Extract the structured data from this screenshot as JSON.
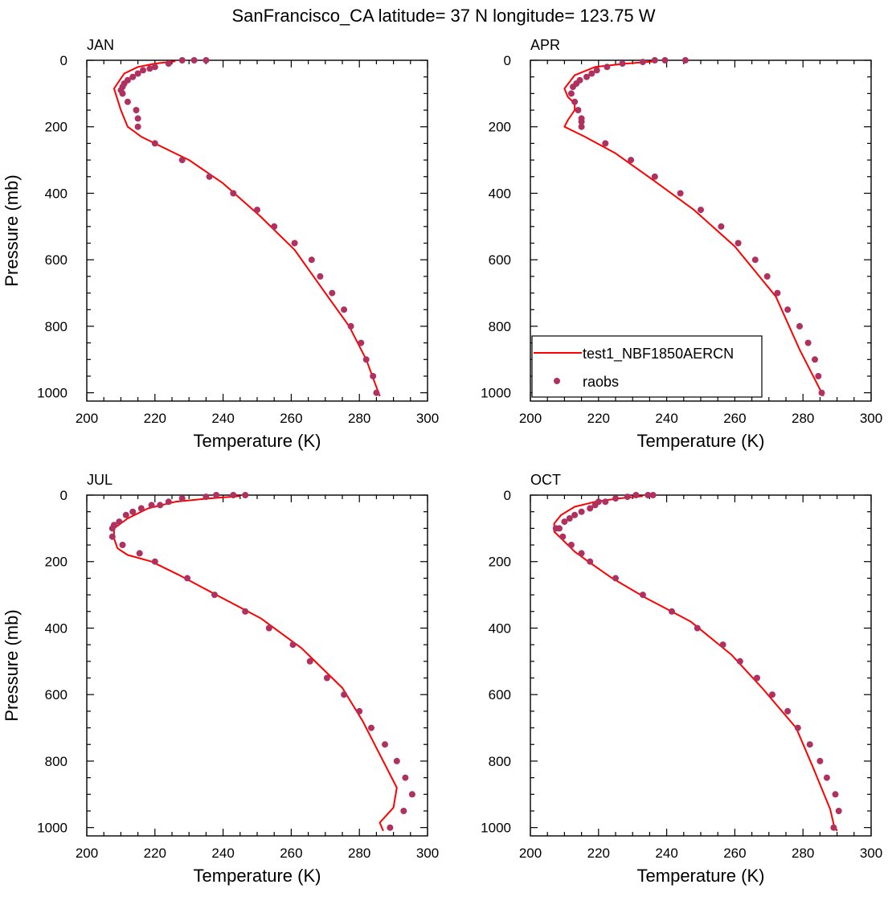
{
  "figure": {
    "title": "SanFrancisco_CA  latitude= 37 N longitude= 123.75 W"
  },
  "legend": {
    "model_label": "test1_NBF1850AERCN",
    "obs_label": "raobs",
    "placement": "bottom-left of APR panel"
  },
  "colors": {
    "model_line": "#ff0000",
    "obs_marker": "#b03060",
    "axes": "#000000",
    "background": "#ffffff"
  },
  "chart_data": [
    {
      "type": "line+scatter",
      "panel_title": "JAN",
      "xlabel": "Temperature (K)",
      "ylabel": "Pressure (mb)",
      "xlim": [
        200,
        300
      ],
      "ylim": [
        1025,
        0
      ],
      "xticks": [
        200,
        220,
        240,
        260,
        280,
        300
      ],
      "yticks": [
        0,
        200,
        400,
        600,
        800,
        1000
      ],
      "series": [
        {
          "name": "test1_NBF1850AERCN",
          "kind": "line",
          "x": [
            226,
            220,
            215,
            211,
            208,
            210,
            212,
            216,
            222,
            230,
            240,
            251,
            261,
            270,
            277,
            282,
            286
          ],
          "y": [
            3,
            10,
            20,
            40,
            85,
            150,
            200,
            230,
            260,
            300,
            370,
            470,
            570,
            700,
            800,
            900,
            1010
          ]
        },
        {
          "name": "raobs",
          "kind": "scatter",
          "x": [
            235,
            231.5,
            228,
            224,
            220,
            218.5,
            216.5,
            215,
            213.5,
            212,
            211,
            210.5,
            210,
            210.5,
            212,
            214.5,
            215,
            215,
            220,
            228,
            236,
            243,
            250,
            255,
            261,
            266,
            268.5,
            272,
            275.5,
            277.5,
            280.5,
            282,
            284,
            285
          ],
          "y": [
            0,
            0,
            0,
            10,
            20,
            25,
            30,
            40,
            50,
            60,
            70,
            80,
            90,
            100,
            125,
            150,
            175,
            200,
            250,
            300,
            350,
            400,
            450,
            500,
            550,
            600,
            650,
            700,
            750,
            800,
            850,
            900,
            950,
            1000
          ]
        }
      ]
    },
    {
      "type": "line+scatter",
      "panel_title": "APR",
      "xlabel": "Temperature (K)",
      "ylabel": "",
      "xlim": [
        200,
        300
      ],
      "ylim": [
        1025,
        0
      ],
      "xticks": [
        200,
        220,
        240,
        260,
        280,
        300
      ],
      "yticks": [
        0,
        200,
        400,
        600,
        800,
        1000
      ],
      "series": [
        {
          "name": "test1_NBF1850AERCN",
          "kind": "line",
          "x": [
            237,
            228,
            219,
            213,
            210,
            211,
            213,
            213,
            211,
            210,
            212,
            216,
            225,
            236,
            248,
            260,
            272,
            279,
            286
          ],
          "y": [
            3,
            10,
            20,
            45,
            85,
            110,
            130,
            150,
            180,
            200,
            210,
            230,
            280,
            360,
            450,
            560,
            710,
            870,
            1010
          ]
        },
        {
          "name": "raobs",
          "kind": "scatter",
          "x": [
            245.5,
            239.5,
            236.5,
            233,
            227,
            222.5,
            219.5,
            218,
            216.5,
            214.5,
            213.5,
            212.5,
            212,
            213,
            214,
            215,
            215,
            215,
            222,
            229.5,
            236.5,
            244,
            250,
            256,
            261,
            266,
            269.5,
            272.5,
            275.5,
            279,
            281.5,
            283.5,
            284.5,
            285.5
          ],
          "y": [
            0,
            0,
            0,
            5,
            10,
            20,
            30,
            40,
            50,
            60,
            70,
            80,
            100,
            125,
            150,
            175,
            185,
            200,
            250,
            300,
            350,
            400,
            450,
            500,
            550,
            600,
            650,
            700,
            750,
            800,
            850,
            900,
            950,
            1000
          ]
        }
      ]
    },
    {
      "type": "line+scatter",
      "panel_title": "JUL",
      "xlabel": "Temperature (K)",
      "ylabel": "Pressure (mb)",
      "xlim": [
        200,
        300
      ],
      "ylim": [
        1025,
        0
      ],
      "xticks": [
        200,
        220,
        240,
        260,
        280,
        300
      ],
      "yticks": [
        0,
        200,
        400,
        600,
        800,
        1000
      ],
      "series": [
        {
          "name": "test1_NBF1850AERCN",
          "kind": "line",
          "x": [
            245,
            236,
            226,
            218,
            212,
            208,
            208,
            209,
            212,
            219,
            227,
            238,
            251,
            263,
            275,
            281,
            286,
            291,
            290,
            286,
            287
          ],
          "y": [
            3,
            10,
            20,
            40,
            70,
            100,
            130,
            160,
            180,
            200,
            240,
            300,
            370,
            460,
            580,
            680,
            780,
            880,
            940,
            985,
            1010
          ]
        },
        {
          "name": "raobs",
          "kind": "scatter",
          "x": [
            246.5,
            243,
            238,
            235,
            228,
            224,
            221.5,
            219,
            216,
            213.5,
            211.5,
            209.5,
            208,
            207.5,
            207.5,
            210.5,
            215.5,
            220,
            229.5,
            237.5,
            246.5,
            253.5,
            260.5,
            265.5,
            270.5,
            275.5,
            280,
            283.5,
            287.5,
            291,
            293.5,
            295.5,
            293,
            289
          ],
          "y": [
            0,
            0,
            0,
            5,
            10,
            20,
            30,
            30,
            40,
            50,
            60,
            80,
            90,
            100,
            125,
            150,
            175,
            200,
            250,
            300,
            350,
            400,
            450,
            500,
            550,
            600,
            650,
            700,
            750,
            800,
            850,
            900,
            950,
            1000
          ]
        }
      ]
    },
    {
      "type": "line+scatter",
      "panel_title": "OCT",
      "xlabel": "Temperature (K)",
      "ylabel": "",
      "xlim": [
        200,
        300
      ],
      "ylim": [
        1025,
        0
      ],
      "xticks": [
        200,
        220,
        240,
        260,
        280,
        300
      ],
      "yticks": [
        0,
        200,
        400,
        600,
        800,
        1000
      ],
      "series": [
        {
          "name": "test1_NBF1850AERCN",
          "kind": "line",
          "x": [
            233,
            226,
            219,
            213,
            209,
            207,
            207,
            210,
            213,
            217,
            224,
            234,
            247,
            259,
            268,
            278,
            283,
            288,
            289,
            290
          ],
          "y": [
            3,
            10,
            20,
            35,
            60,
            85,
            110,
            140,
            170,
            200,
            250,
            310,
            380,
            480,
            580,
            700,
            820,
            945,
            990,
            1010
          ]
        },
        {
          "name": "raobs",
          "kind": "scatter",
          "x": [
            236,
            234.5,
            231,
            228.5,
            225,
            222,
            220,
            219,
            217.5,
            215,
            213,
            211.5,
            210,
            208.5,
            207.5,
            209.5,
            212,
            215,
            217.5,
            225,
            233,
            241.5,
            249,
            256.5,
            261.5,
            266.5,
            271,
            275.5,
            278.5,
            282,
            285,
            287,
            289.5,
            290.5,
            289
          ],
          "y": [
            0,
            0,
            0,
            5,
            10,
            20,
            20,
            30,
            40,
            50,
            60,
            70,
            80,
            100,
            100,
            125,
            150,
            175,
            200,
            250,
            300,
            350,
            400,
            450,
            500,
            550,
            600,
            650,
            700,
            750,
            800,
            850,
            900,
            950,
            1000
          ]
        }
      ]
    }
  ]
}
